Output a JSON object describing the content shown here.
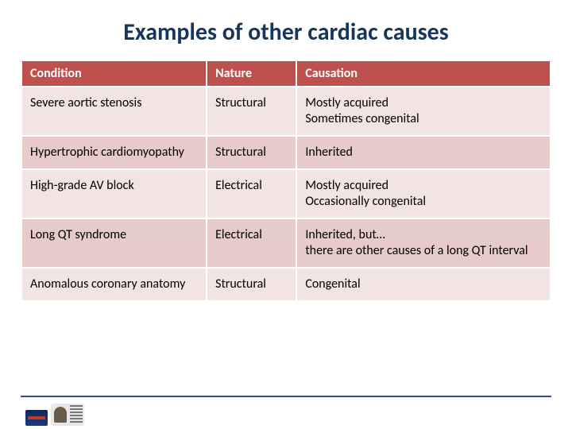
{
  "title": "Examples of other cardiac causes",
  "colors": {
    "title": "#17365d",
    "header_bg": "#be514d",
    "header_fg": "#ffffff",
    "row_odd": "#f2e4e3",
    "row_even": "#e6cbc9",
    "rule": "#2f4f8f"
  },
  "table": {
    "columns": [
      "Condition",
      "Nature",
      "Causation"
    ],
    "column_widths_pct": [
      35,
      17,
      48
    ],
    "rows": [
      [
        "Severe aortic stenosis",
        "Structural",
        "Mostly acquired\nSometimes congenital"
      ],
      [
        "Hypertrophic cardiomyopathy",
        "Structural",
        "Inherited"
      ],
      [
        "High-grade AV block",
        "Electrical",
        "Mostly acquired\nOccasionally congenital"
      ],
      [
        "Long QT syndrome",
        "Electrical",
        "Inherited, but…\nthere are other causes of a long QT interval"
      ],
      [
        "Anomalous coronary anatomy",
        "Structural",
        "Congenital"
      ]
    ]
  }
}
